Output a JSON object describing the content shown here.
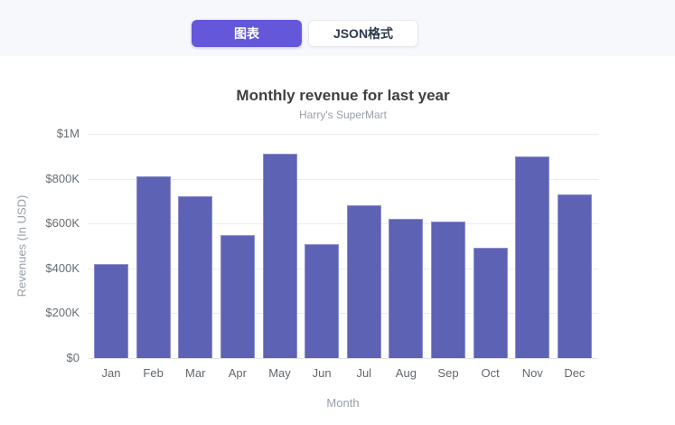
{
  "tabs": [
    {
      "label": "图表",
      "active": true
    },
    {
      "label": "JSON格式",
      "active": false
    }
  ],
  "chart_data": {
    "type": "bar",
    "title": "Monthly revenue for last year",
    "subtitle": "Harry's SuperMart",
    "xlabel": "Month",
    "ylabel": "Revenues (In USD)",
    "categories": [
      "Jan",
      "Feb",
      "Mar",
      "Apr",
      "May",
      "Jun",
      "Jul",
      "Aug",
      "Sep",
      "Oct",
      "Nov",
      "Dec"
    ],
    "values": [
      420000,
      810000,
      720000,
      550000,
      910000,
      510000,
      680000,
      620000,
      610000,
      490000,
      900000,
      730000
    ],
    "y_ticks": [
      "$0",
      "$200K",
      "$400K",
      "$600K",
      "$800K",
      "$1M"
    ],
    "ylim": [
      0,
      1000000
    ],
    "grid": "on",
    "legend": "none",
    "bar_color": "#5d62b5"
  },
  "colors": {
    "accent_purple": "#6457da",
    "bar": "#5d62b5",
    "header_bg": "#f7f8fc",
    "title_text": "#404040",
    "muted_text": "#989fa6"
  }
}
